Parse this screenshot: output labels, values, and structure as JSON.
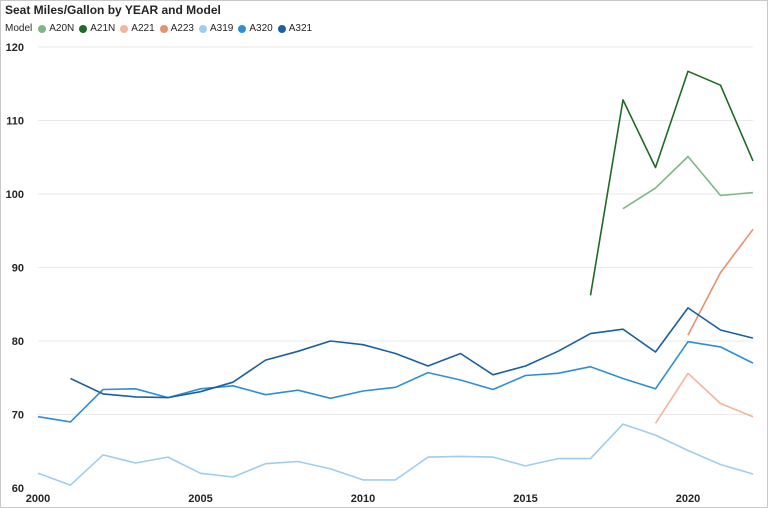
{
  "chart_data": {
    "type": "line",
    "title": "Seat Miles/Gallon by YEAR and Model",
    "legend_title": "Model",
    "xlabel": "",
    "ylabel": "",
    "x": [
      2000,
      2001,
      2002,
      2003,
      2004,
      2005,
      2006,
      2007,
      2008,
      2009,
      2010,
      2011,
      2012,
      2013,
      2014,
      2015,
      2016,
      2017,
      2018,
      2019,
      2020,
      2021,
      2022
    ],
    "xticks": [
      "2000",
      "2005",
      "2010",
      "2015",
      "2020"
    ],
    "yticks": [
      "60",
      "70",
      "80",
      "90",
      "100",
      "110",
      "120"
    ],
    "ylim": [
      60,
      120
    ],
    "xlim": [
      2000,
      2022
    ],
    "grid": true,
    "legend_position": "top-left",
    "series": [
      {
        "name": "A20N",
        "color": "#7fb685",
        "values": [
          null,
          null,
          null,
          null,
          null,
          null,
          null,
          null,
          null,
          null,
          null,
          null,
          null,
          null,
          null,
          null,
          null,
          null,
          98.0,
          100.8,
          105.1,
          99.8,
          100.2
        ]
      },
      {
        "name": "A21N",
        "color": "#1e6b25",
        "values": [
          null,
          null,
          null,
          null,
          null,
          null,
          null,
          null,
          null,
          null,
          null,
          null,
          null,
          null,
          null,
          null,
          null,
          86.2,
          112.8,
          103.6,
          116.7,
          114.8,
          104.5
        ]
      },
      {
        "name": "A221",
        "color": "#f3b59c",
        "values": [
          null,
          null,
          null,
          null,
          null,
          null,
          null,
          null,
          null,
          null,
          null,
          null,
          null,
          null,
          null,
          null,
          null,
          null,
          null,
          68.8,
          75.6,
          71.5,
          69.7
        ]
      },
      {
        "name": "A223",
        "color": "#e8916b",
        "values": [
          null,
          null,
          null,
          null,
          null,
          null,
          null,
          null,
          null,
          null,
          null,
          null,
          null,
          null,
          null,
          null,
          null,
          null,
          null,
          null,
          80.8,
          89.3,
          95.2
        ]
      },
      {
        "name": "A319",
        "color": "#9fcdee",
        "values": [
          62.0,
          60.4,
          64.5,
          63.4,
          64.2,
          62.0,
          61.5,
          63.3,
          63.6,
          62.6,
          61.1,
          61.1,
          64.2,
          64.3,
          64.2,
          63.0,
          64.0,
          64.0,
          68.7,
          67.2,
          65.1,
          63.2,
          61.9
        ]
      },
      {
        "name": "A320",
        "color": "#2f8fd4",
        "values": [
          69.7,
          69.0,
          73.4,
          73.5,
          72.3,
          73.5,
          73.9,
          72.7,
          73.3,
          72.2,
          73.2,
          73.7,
          75.7,
          74.7,
          73.4,
          75.3,
          75.6,
          76.5,
          74.9,
          73.5,
          79.9,
          79.2,
          77.0
        ]
      },
      {
        "name": "A321",
        "color": "#1a5fa3",
        "values": [
          null,
          74.9,
          72.8,
          72.4,
          72.3,
          73.1,
          74.4,
          77.4,
          78.6,
          80.0,
          79.5,
          78.3,
          76.6,
          78.3,
          75.4,
          76.6,
          78.6,
          81.0,
          81.6,
          78.5,
          84.5,
          81.5,
          80.4
        ]
      }
    ]
  }
}
